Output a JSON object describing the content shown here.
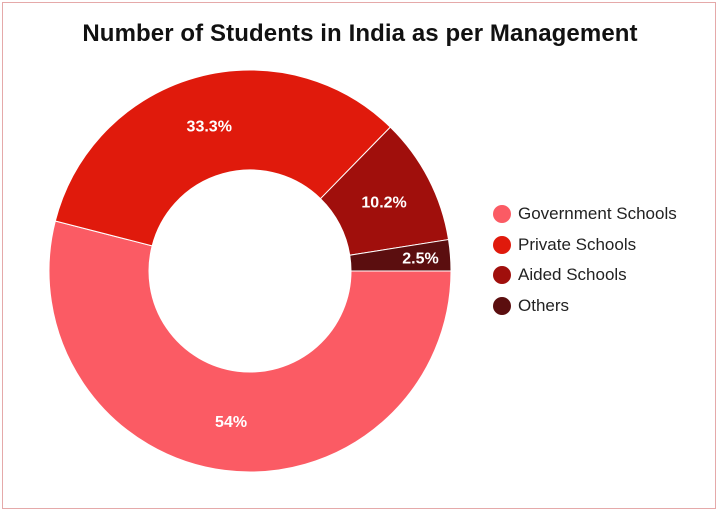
{
  "chart_data": {
    "type": "pie",
    "donut": true,
    "title": "Number of Students in India as per Management",
    "categories": [
      "Government Schools",
      "Private Schools",
      "Aided Schools",
      "Others"
    ],
    "values": [
      54,
      33.3,
      10.2,
      2.5
    ],
    "labels": [
      "54%",
      "33.3%",
      "10.2%",
      "2.5%"
    ],
    "colors": [
      "#fb5b64",
      "#e01a0c",
      "#a00f0c",
      "#5b0e0f"
    ],
    "legend_position": "right"
  }
}
